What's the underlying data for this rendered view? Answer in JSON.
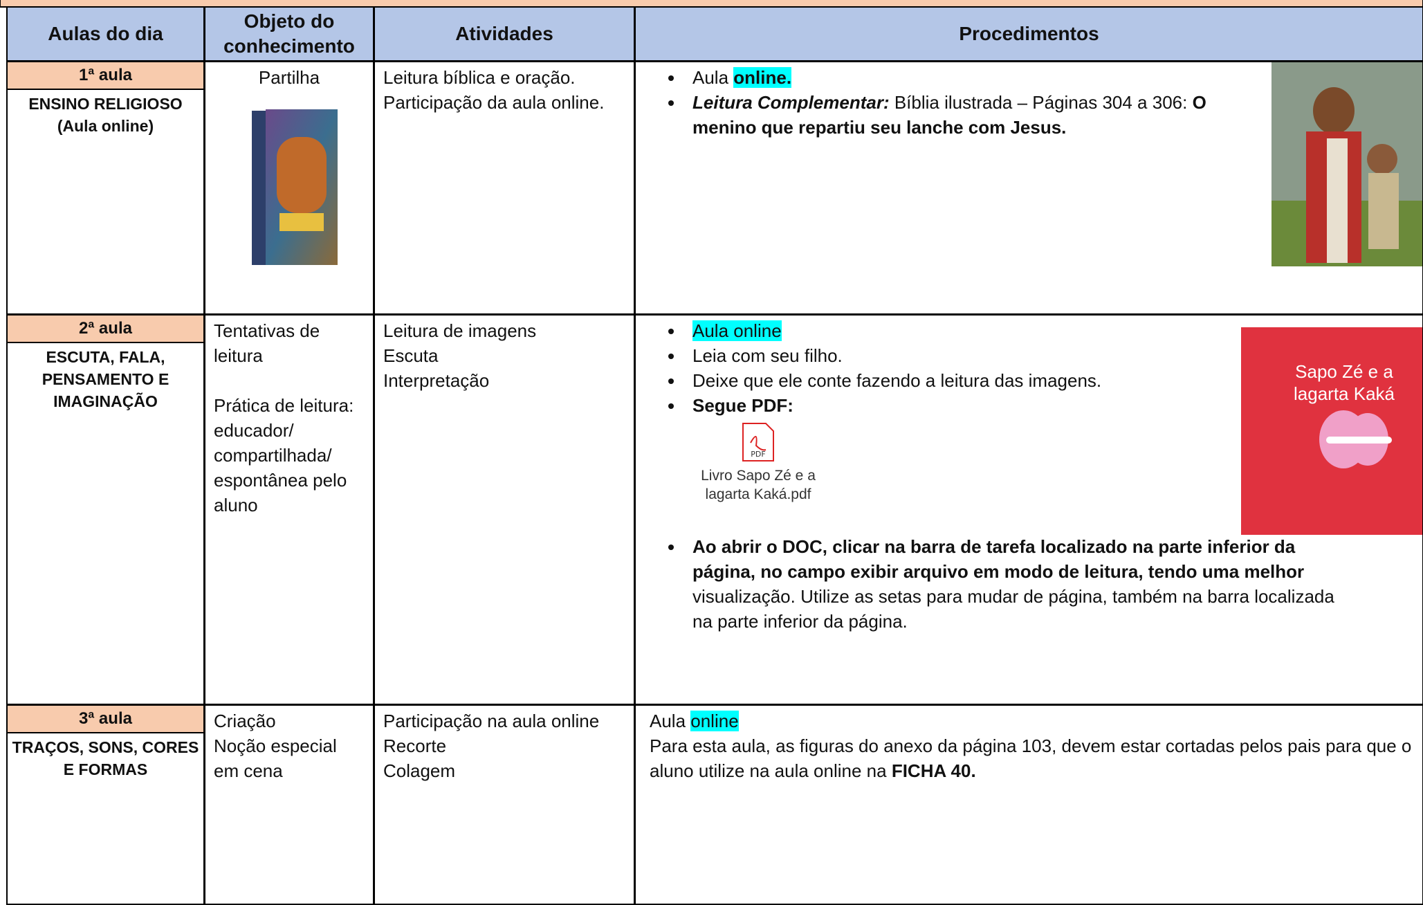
{
  "header": {
    "columns": [
      "Aulas do dia",
      "Objeto do conhecimento",
      "Atividades",
      "Procedimentos"
    ]
  },
  "rows": [
    {
      "lesson": "1ª aula",
      "subject": [
        "ENSINO RELIGIOSO",
        "(Aula online)"
      ],
      "objeto": [
        "Partilha"
      ],
      "atividades": [
        "Leitura bíblica e oração.",
        "Participação da aula online."
      ],
      "procedimentos": [
        [
          "Aula ",
          "online."
        ],
        [
          "Leitura Complementar:",
          "  Bíblia ilustrada – Páginas 304 a 306: ",
          "O menino que repartiu seu lanche com Jesus."
        ]
      ]
    },
    {
      "lesson": "2ª aula",
      "subject": [
        "ESCUTA, FALA,",
        "PENSAMENTO E",
        "IMAGINAÇÃO"
      ],
      "objeto": [
        "Tentativas de",
        "leitura",
        "Prática de leitura:",
        "educador/",
        "compartilhada/",
        "espontânea pelo",
        "aluno"
      ],
      "atividades": [
        "Leitura de imagens",
        "Escuta",
        "Interpretação"
      ],
      "procedimentos": [
        "Aula online",
        "Leia com seu filho.",
        "Deixe que ele conte fazendo a leitura das imagens.",
        "Segue PDF:",
        [
          "Ao abrir o DOC, clicar na barra de tarefa localizado na parte inferior da página, no campo exibir arquivo em modo de leitura, tendo uma melhor",
          " visualização. Utilize as setas para mudar de página, também na barra localizada na parte inferior da página."
        ]
      ],
      "anexo": "Livro Sapo Zé e a lagarta Kaká.pdf",
      "capa": "Sapo Zé e a lagarta Kaká"
    },
    {
      "lesson": "3ª aula",
      "subject": [
        "TRAÇOS, SONS, CORES",
        "E FORMAS"
      ],
      "objeto": [
        "Criação",
        "Noção especial",
        "em cena"
      ],
      "atividades": [
        "Participação na aula online",
        "Recorte",
        "Colagem"
      ],
      "procedimentos": [
        [
          "Aula ",
          "online"
        ],
        [
          "Para esta aula, as figuras do anexo da página 103, devem estar cortadas pelos pais para que o aluno utilize na aula online na ",
          "FICHA 40."
        ]
      ]
    }
  ]
}
